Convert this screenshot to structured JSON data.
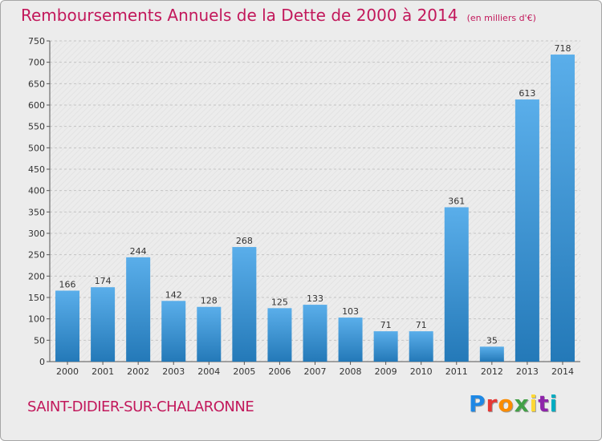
{
  "header": {
    "title": "Remboursements Annuels de la Dette de 2000 à 2014",
    "subtitle": "(en milliers d'€)"
  },
  "footer": {
    "commune": "SAINT-DIDIER-SUR-CHALARONNE",
    "logo": "Proxiti",
    "logo_colors": [
      "#1e88e5",
      "#e53935",
      "#fb8c00",
      "#43a047",
      "#fdd835",
      "#8e24aa",
      "#00acc1"
    ]
  },
  "colors": {
    "title": "#c2185b",
    "bar_light": "#5aaeea",
    "bar_dark": "#2479b8",
    "background": "#ececec"
  },
  "chart_data": {
    "type": "bar",
    "title": "Remboursements Annuels de la Dette de 2000 à 2014",
    "subtitle": "(en milliers d'€)",
    "categories": [
      "2000",
      "2001",
      "2002",
      "2003",
      "2004",
      "2005",
      "2006",
      "2007",
      "2008",
      "2009",
      "2010",
      "2011",
      "2012",
      "2013",
      "2014"
    ],
    "values": [
      166,
      174,
      244,
      142,
      128,
      268,
      125,
      133,
      103,
      71,
      71,
      361,
      35,
      613,
      718
    ],
    "ylim": [
      0,
      750
    ],
    "yticks": [
      0,
      50,
      100,
      150,
      200,
      250,
      300,
      350,
      400,
      450,
      500,
      550,
      600,
      650,
      700,
      750
    ],
    "grid": true,
    "legend": "none"
  }
}
